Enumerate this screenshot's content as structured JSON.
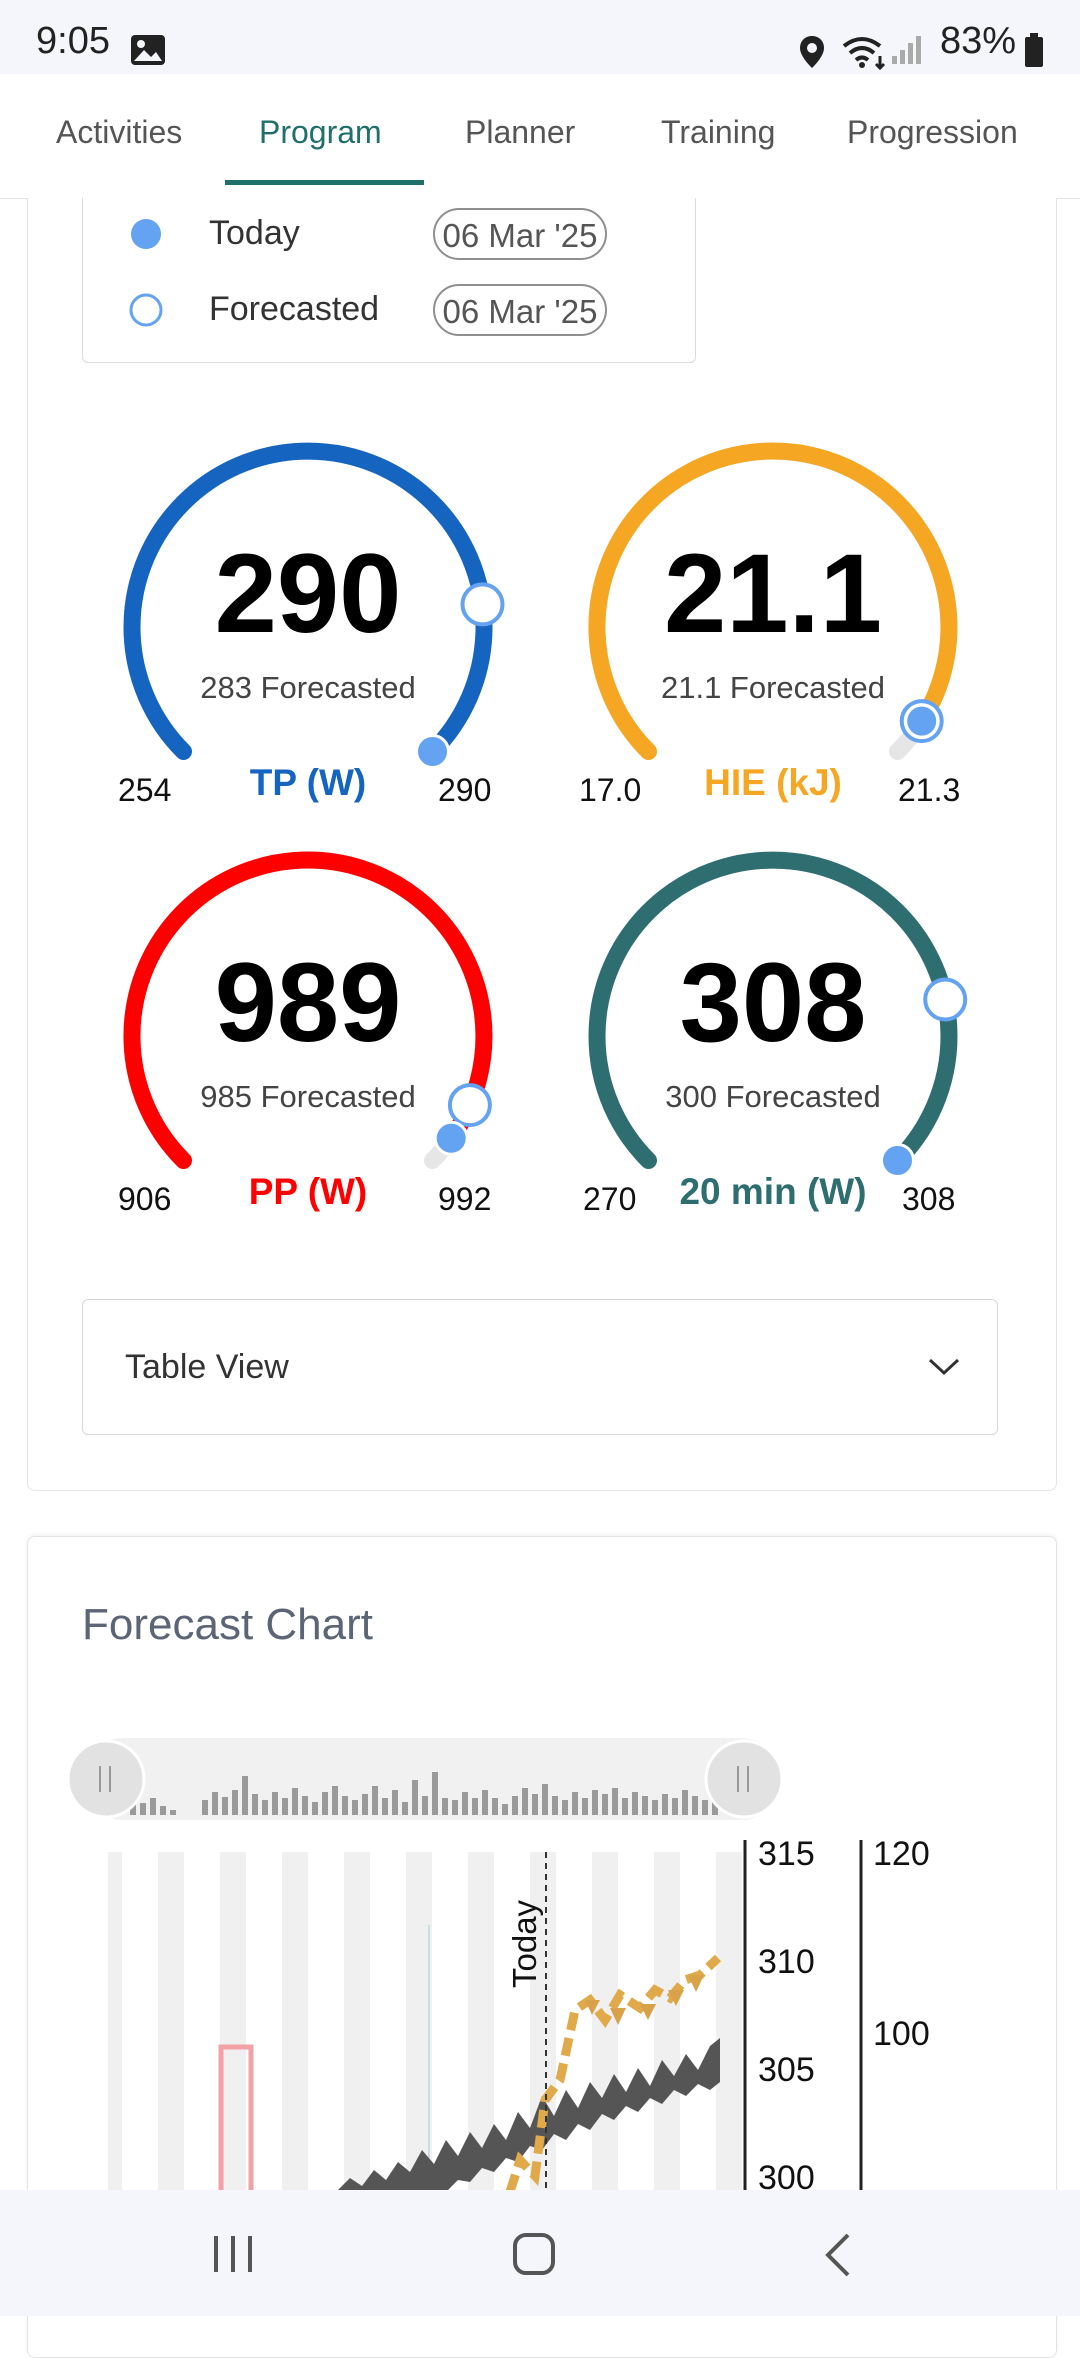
{
  "status_bar": {
    "time": "9:05",
    "battery": "83%"
  },
  "tabs": [
    {
      "label": "Activities"
    },
    {
      "label": "Program"
    },
    {
      "label": "Planner"
    },
    {
      "label": "Training"
    },
    {
      "label": "Progression"
    }
  ],
  "legend": {
    "today_label": "Today",
    "today_date": "06 Mar '25",
    "forecasted_label": "Forecasted",
    "forecasted_date": "06 Mar '25"
  },
  "gauges": [
    {
      "value": "290",
      "forecast": "283 Forecasted",
      "min": "254",
      "max": "290",
      "title": "TP (W)",
      "color": "#1565c0",
      "today_fraction": 1.0,
      "forecast_fraction": 0.806
    },
    {
      "value": "21.1",
      "forecast": "21.1 Forecasted",
      "min": "17.0",
      "max": "21.3",
      "title": "HIE (kJ)",
      "color": "#f5a623",
      "today_fraction": 0.953,
      "forecast_fraction": 0.953
    },
    {
      "value": "989",
      "forecast": "985 Forecasted",
      "min": "906",
      "max": "992",
      "title": "PP (W)",
      "color": "#ff0000",
      "today_fraction": 0.965,
      "forecast_fraction": 0.919
    },
    {
      "value": "308",
      "forecast": "300 Forecasted",
      "min": "270",
      "max": "308",
      "title": "20 min (W)",
      "color": "#2e6e71",
      "today_fraction": 1.0,
      "forecast_fraction": 0.789
    }
  ],
  "table_view": {
    "label": "Table View"
  },
  "forecast_chart": {
    "title": "Forecast Chart"
  },
  "chart_data": {
    "type": "area",
    "today_marker_label": "Today",
    "y_axis_left": {
      "ticks": [
        "315",
        "310",
        "305",
        "300"
      ]
    },
    "y_axis_right": {
      "ticks": [
        "120",
        "100"
      ]
    }
  },
  "colors": {
    "accent": "#1f6f6b",
    "today_dot": "#64a2f2"
  }
}
